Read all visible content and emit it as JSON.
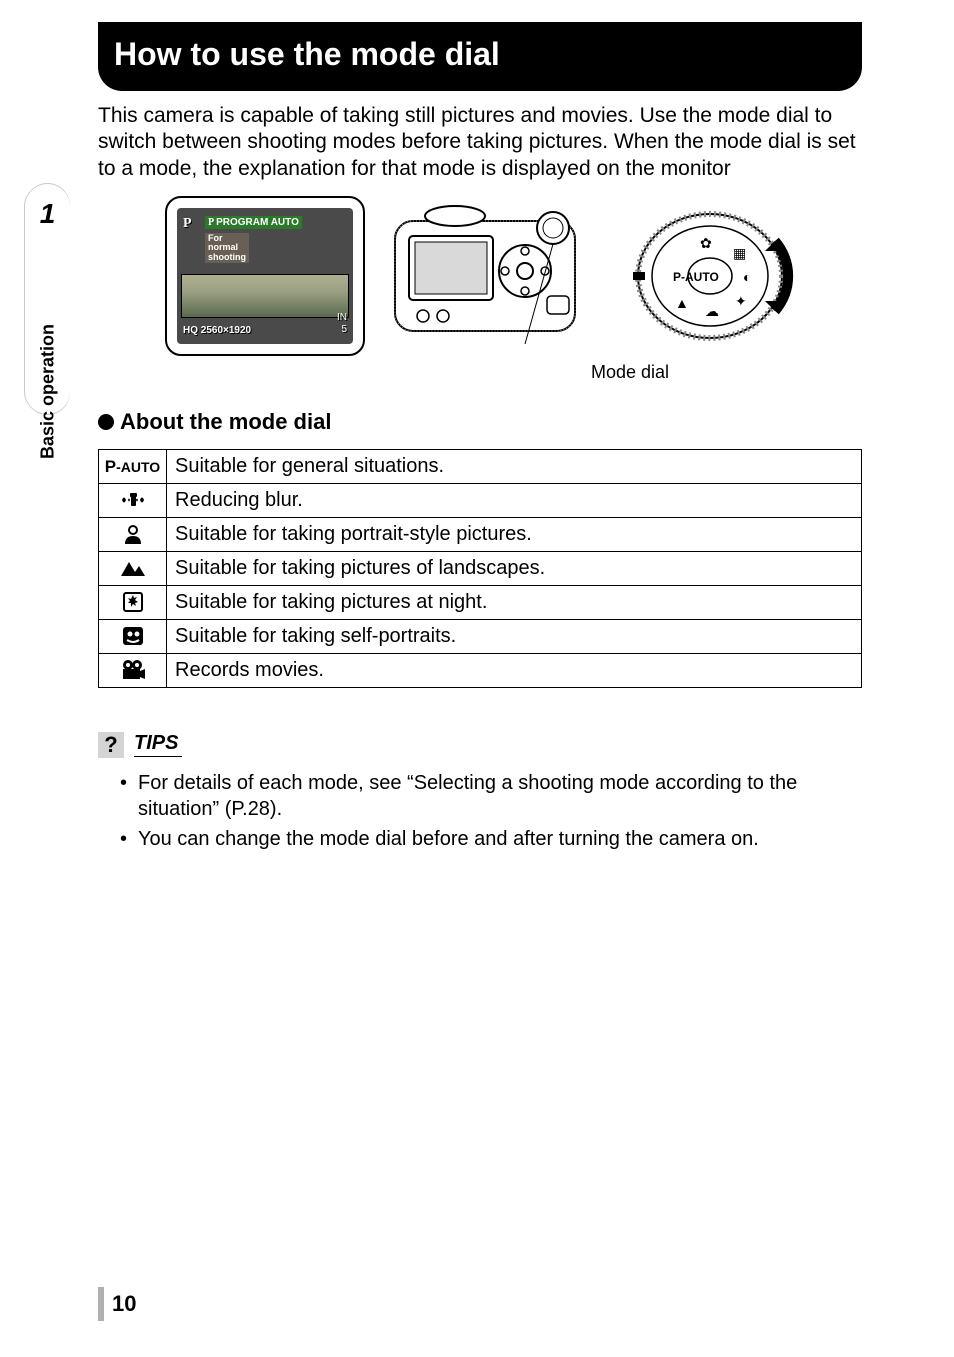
{
  "sidebar": {
    "chapter_number": "1",
    "label": "Basic operation"
  },
  "title": "How to use the mode dial",
  "intro": "This camera is capable of taking still pictures and movies. Use the mode dial to switch between shooting modes before taking pictures. When the mode dial is set to a mode, the explanation for that mode is displayed on the monitor",
  "lcd": {
    "p": "P",
    "program_auto": "PROGRAM AUTO",
    "subtitle": "For\nnormal\nshooting",
    "hq": "HQ 2560×1920",
    "right_top": "IN",
    "right_bottom": "5"
  },
  "dial": {
    "center_label": "P-AUTO"
  },
  "mode_dial_caption": "Mode dial",
  "about_heading": "About the mode dial",
  "table": {
    "row0": {
      "icon_text": "P-AUTO",
      "desc": "Suitable for general situations."
    },
    "row1": {
      "desc": "Reducing blur."
    },
    "row2": {
      "desc": "Suitable for taking portrait-style pictures."
    },
    "row3": {
      "desc": "Suitable for taking pictures of landscapes."
    },
    "row4": {
      "desc": "Suitable for taking pictures at night."
    },
    "row5": {
      "desc": "Suitable for taking self-portraits."
    },
    "row6": {
      "desc": "Records movies."
    }
  },
  "tips": {
    "q_mark": "?",
    "label": "TIPS",
    "items": {
      "0": "For details of each mode, see “Selecting a shooting mode according to the situation” (P.28).",
      "1": "You can change the mode dial before and after turning the camera on."
    }
  },
  "page_number": "10",
  "colors": {
    "title_bg": "#000000",
    "title_fg": "#ffffff",
    "text": "#000000",
    "sidebar_shadow": "#c8c8c8",
    "tips_box": "#d4d4d4",
    "lcd_bg": "#4a4a4a",
    "page_bar": "#b0b0b0"
  }
}
